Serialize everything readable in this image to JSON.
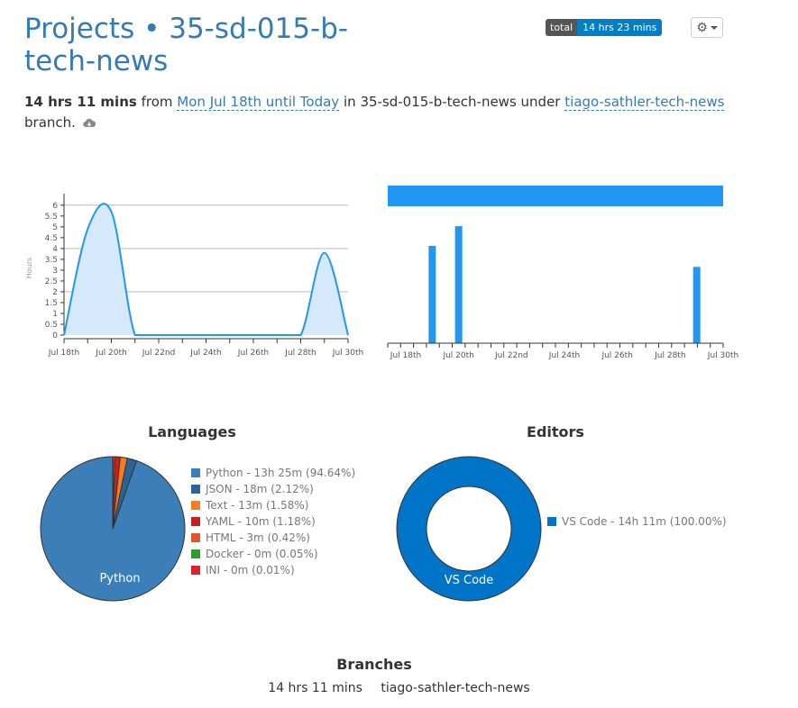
{
  "header": {
    "projects_link": "Projects",
    "separator": "•",
    "project_name": "35-sd-015-b-tech-news",
    "total_label": "total",
    "total_value": "14 hrs 23 mins"
  },
  "summary": {
    "duration": "14 hrs 11 mins",
    "from_word": "from",
    "range": "Mon Jul 18th until Today",
    "in_word": "in",
    "project": "35-sd-015-b-tech-news",
    "under_word": "under",
    "branch": "tiago-sathler-tech-news",
    "branch_word": "branch."
  },
  "activity_chart": {
    "ylabel": "Hours",
    "yticks": [
      "0",
      "0.5",
      "1",
      "1.5",
      "2",
      "2.5",
      "3",
      "3.5",
      "4",
      "4.5",
      "5",
      "5.5",
      "6"
    ],
    "xticks": [
      "Jul 18th",
      "Jul 20th",
      "Jul 22nd",
      "Jul 24th",
      "Jul 26th",
      "Jul 28th",
      "Jul 30th"
    ]
  },
  "chart_data": [
    {
      "type": "area",
      "x": [
        "Jul 18",
        "Jul 19",
        "Jul 20",
        "Jul 21",
        "Jul 22",
        "Jul 23",
        "Jul 24",
        "Jul 25",
        "Jul 26",
        "Jul 27",
        "Jul 28",
        "Jul 29",
        "Jul 30"
      ],
      "series": [
        {
          "values": [
            0,
            4.9,
            5.7,
            0,
            0,
            0,
            0,
            0,
            0,
            0,
            0,
            3.8,
            0
          ]
        }
      ],
      "ylabel": "Hours",
      "ylim": [
        0,
        6.2
      ],
      "grid": true,
      "color": "#2196f3",
      "fill": "#d4e9fb"
    },
    {
      "type": "bar",
      "x": [
        "Jul 18",
        "Jul 19",
        "Jul 20",
        "Jul 21",
        "Jul 22",
        "Jul 23",
        "Jul 24",
        "Jul 25",
        "Jul 26",
        "Jul 27",
        "Jul 28",
        "Jul 29",
        "Jul 30"
      ],
      "series": [
        {
          "values": [
            0,
            0.74,
            0.89,
            0,
            0,
            0,
            0,
            0,
            0,
            0,
            0,
            0.58,
            0
          ]
        }
      ],
      "top_bar_fraction": 1.0,
      "color": "#2196f3"
    },
    {
      "type": "pie",
      "title": "Languages",
      "labels": [
        "Python",
        "JSON",
        "Text",
        "YAML",
        "HTML",
        "Docker",
        "INI"
      ],
      "values": [
        94.64,
        2.12,
        1.58,
        1.18,
        0.42,
        0.05,
        0.01
      ],
      "colors": [
        "#3b7eb8",
        "#2a6496",
        "#f57c1f",
        "#c9201b",
        "#e0572a",
        "#2e9c2e",
        "#d62728"
      ],
      "legend": [
        "Python - 13h 25m (94.64%)",
        "JSON - 18m (2.12%)",
        "Text - 13m (1.58%)",
        "YAML - 10m (1.18%)",
        "HTML - 3m (0.42%)",
        "Docker - 0m (0.05%)",
        "INI - 0m (0.01%)"
      ],
      "slice_label": "Python"
    },
    {
      "type": "pie",
      "title": "Editors",
      "labels": [
        "VS Code"
      ],
      "values": [
        100.0
      ],
      "colors": [
        "#0074c7"
      ],
      "legend": [
        "VS Code - 14h 11m (100.00%)"
      ],
      "slice_label": "VS Code"
    }
  ],
  "branches": {
    "title": "Branches",
    "rows": [
      {
        "time": "14 hrs 11 mins",
        "name": "tiago-sathler-tech-news"
      }
    ]
  },
  "icons": {
    "settings": "gear-icon",
    "dropdown": "caret-down-icon",
    "cloud": "cloud-download-icon"
  }
}
